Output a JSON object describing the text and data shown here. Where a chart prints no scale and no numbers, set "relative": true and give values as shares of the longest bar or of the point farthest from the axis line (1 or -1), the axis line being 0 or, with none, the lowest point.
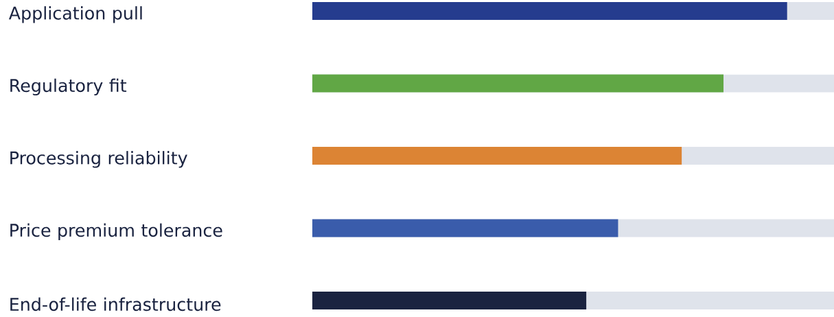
{
  "chart_data": {
    "type": "bar",
    "orientation": "horizontal",
    "relative": true,
    "categories": [
      "Application pull",
      "Regulatory fit",
      "Processing reliability",
      "Price premium tolerance",
      "End-of-life infrastructure"
    ],
    "values": [
      1,
      0.866,
      0.778,
      0.644,
      0.577
    ],
    "colors": [
      "#253c8e",
      "#61a745",
      "#dc8434",
      "#3a5cab",
      "#1a2340"
    ]
  }
}
